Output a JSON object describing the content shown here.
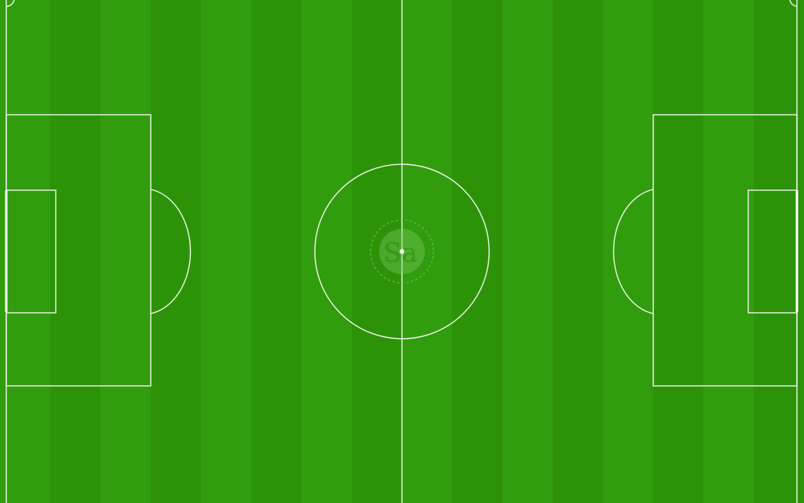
{
  "pitch": {
    "turf_color_a": "#319c0d",
    "turf_color_b": "#2c9309",
    "line_color": "#eef5e6"
  },
  "center_logo": {
    "monogram": "Sa",
    "fill_color": "#7fc866"
  }
}
